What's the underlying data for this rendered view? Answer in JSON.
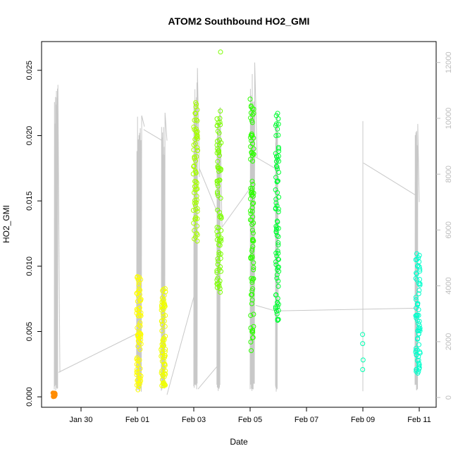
{
  "chart_data": {
    "type": "scatter",
    "title": "ATOM2 Southbound HO2_GMI",
    "xlabel": "Date",
    "ylabel": "HO2_GMI",
    "x_ticks": [
      "Jan 30",
      "Feb 01",
      "Feb 03",
      "Feb 05",
      "Feb 07",
      "Feb 09",
      "Feb 11"
    ],
    "x_tick_days": [
      30,
      32,
      34,
      36,
      38,
      40,
      42
    ],
    "xlim_days": [
      28.6,
      42.6
    ],
    "y_ticks": [
      "0.000",
      "0.005",
      "0.010",
      "0.015",
      "0.020",
      "0.025"
    ],
    "y_tick_values": [
      0.0,
      0.005,
      0.01,
      0.015,
      0.02,
      0.025
    ],
    "ylim": [
      -0.0008,
      0.0272
    ],
    "y2_ticks": [
      "0",
      "2000",
      "4000",
      "6000",
      "8000",
      "10000",
      "12000"
    ],
    "y2_tick_values": [
      0,
      2000,
      4000,
      6000,
      8000,
      10000,
      12000
    ],
    "y2lim": [
      -350,
      12750
    ],
    "grid": false,
    "point_colors": {
      "jan29": "#ff8c00",
      "feb01": "#ffff00",
      "feb02": "#f0ff00",
      "feb03": "#a6ff00",
      "feb04": "#7cff00",
      "feb05": "#2dff00",
      "feb06": "#00ff33",
      "feb10": "#00ffb0",
      "feb11": "#00ffcc"
    },
    "altitude_line_color": "#c8c8c8",
    "clusters": [
      {
        "name": "jan29",
        "x": 29.05,
        "xspread": 0.05,
        "ymin": 0.0,
        "ymax": 0.0003,
        "n": 14
      },
      {
        "name": "feb01",
        "x": 32.05,
        "xspread": 0.08,
        "ymin": 0.0005,
        "ymax": 0.0093,
        "n": 75
      },
      {
        "name": "feb02",
        "x": 32.92,
        "xspread": 0.08,
        "ymin": 0.0008,
        "ymax": 0.0083,
        "n": 75
      },
      {
        "name": "feb03",
        "x": 34.06,
        "xspread": 0.08,
        "ymin": 0.0118,
        "ymax": 0.0229,
        "n": 70
      },
      {
        "name": "feb04",
        "x": 34.9,
        "xspread": 0.08,
        "ymin": 0.008,
        "ymax": 0.0225,
        "n": 80
      },
      {
        "name": "feb05",
        "x": 36.07,
        "xspread": 0.06,
        "ymin": 0.0035,
        "ymax": 0.0228,
        "n": 90
      },
      {
        "name": "feb06",
        "x": 36.96,
        "xspread": 0.06,
        "ymin": 0.0058,
        "ymax": 0.0222,
        "n": 80
      },
      {
        "name": "feb10",
        "x": 40.0,
        "xspread": 0.01,
        "ymin": 0.002,
        "ymax": 0.0058,
        "n": 4
      },
      {
        "name": "feb11",
        "x": 41.95,
        "xspread": 0.08,
        "ymin": 0.0018,
        "ymax": 0.011,
        "n": 70
      }
    ],
    "outliers": [
      {
        "name": "feb04",
        "x": 34.95,
        "y": 0.0264
      },
      {
        "name": "feb01",
        "x": 32.0,
        "y": 0.0092
      },
      {
        "name": "feb05",
        "x": 36.0,
        "y": 0.0228
      }
    ],
    "altitude_flights": [
      {
        "x0": 29.05,
        "x1": 29.25,
        "peak": 11200,
        "end": 900
      },
      {
        "x0": 31.97,
        "x1": 32.25,
        "peak": 10100,
        "end": 9700
      },
      {
        "x0": 32.85,
        "x1": 33.05,
        "peak": 10200,
        "end": 9200
      },
      {
        "x0": 34.0,
        "x1": 34.2,
        "peak": 11800,
        "end": 7900
      },
      {
        "x0": 34.82,
        "x1": 35.0,
        "peak": 10400,
        "end": 6100
      },
      {
        "x0": 36.0,
        "x1": 36.25,
        "peak": 12000,
        "end": 8600
      },
      {
        "x0": 36.9,
        "x1": 37.0,
        "peak": 10200,
        "end": 3100
      },
      {
        "x0": 40.0,
        "x1": 40.0,
        "peak": 9900,
        "end": 8200
      },
      {
        "x0": 41.85,
        "x1": 42.0,
        "peak": 9800,
        "end": 7000
      }
    ],
    "altitude_transits": [
      [
        29.2,
        900,
        32.0,
        2300
      ],
      [
        32.22,
        9600,
        32.88,
        9200
      ],
      [
        33.05,
        100,
        34.0,
        3600
      ],
      [
        34.15,
        300,
        34.9,
        1200
      ],
      [
        34.2,
        8200,
        34.85,
        6600
      ],
      [
        35.0,
        6100,
        36.0,
        7500
      ],
      [
        36.05,
        8700,
        36.9,
        8200
      ],
      [
        36.2,
        3300,
        36.9,
        3100
      ],
      [
        36.9,
        3100,
        41.9,
        3200
      ],
      [
        40.02,
        8400,
        41.95,
        7200
      ]
    ]
  }
}
